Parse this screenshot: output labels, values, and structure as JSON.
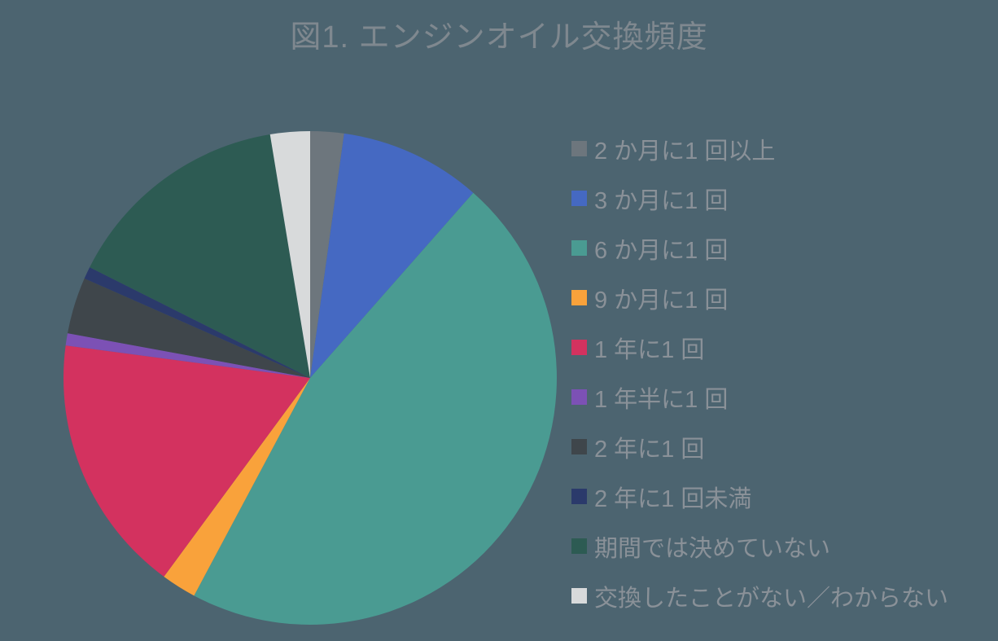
{
  "colors": {
    "background": "#4C6470",
    "title_text": "#7F888F",
    "legend_text": "#8A9198"
  },
  "chart_data": {
    "type": "pie",
    "title": "図1. エンジンオイル交換頻度",
    "legend_position": "right",
    "start_angle_deg": 0,
    "direction": "clockwise",
    "values_note": "percent of whole, estimated from slice angles",
    "slices": [
      {
        "label": "2 か月に1 回以上",
        "value_pct": 2.2,
        "color": "#6D767D"
      },
      {
        "label": "3 か月に1 回",
        "value_pct": 9.3,
        "color": "#4569C2"
      },
      {
        "label": "6 か月に1 回",
        "value_pct": 46.3,
        "color": "#4A9B92"
      },
      {
        "label": "9 か月に1 回",
        "value_pct": 2.3,
        "color": "#F9A23B"
      },
      {
        "label": "1 年に1 回",
        "value_pct": 17.0,
        "color": "#D3325F"
      },
      {
        "label": "1 年半に1 回",
        "value_pct": 0.8,
        "color": "#7C51B5"
      },
      {
        "label": "2 年に1 回",
        "value_pct": 3.7,
        "color": "#3F464B"
      },
      {
        "label": "2 年に1 回未満",
        "value_pct": 0.8,
        "color": "#2B3A6B"
      },
      {
        "label": "期間では決めていない",
        "value_pct": 15.0,
        "color": "#2D5B53"
      },
      {
        "label": "交換したことがない／わからない",
        "value_pct": 2.6,
        "color": "#D8DADB"
      }
    ]
  }
}
